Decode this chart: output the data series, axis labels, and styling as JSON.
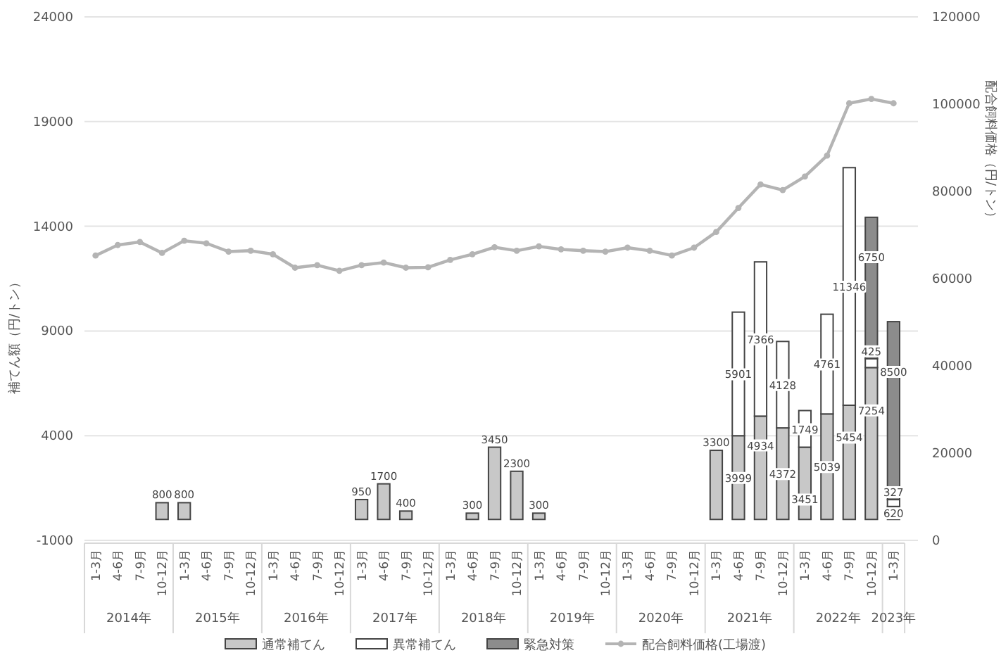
{
  "chart_data": {
    "type": "bar",
    "stacked": true,
    "categories": [
      "1-3月",
      "4-6月",
      "7-9月",
      "10-12月",
      "1-3月",
      "4-6月",
      "7-9月",
      "10-12月",
      "1-3月",
      "4-6月",
      "7-9月",
      "10-12月",
      "1-3月",
      "4-6月",
      "7-9月",
      "10-12月",
      "1-3月",
      "4-6月",
      "7-9月",
      "10-12月",
      "1-3月",
      "4-6月",
      "7-9月",
      "10-12月",
      "1-3月",
      "4-6月",
      "7-9月",
      "10-12月",
      "1-3月",
      "4-6月",
      "7-9月",
      "10-12月",
      "1-3月",
      "4-6月",
      "7-9月",
      "10-12月",
      "1-3月"
    ],
    "annotations": [
      "2014年",
      "2015年",
      "2016年",
      "2017年",
      "2018年",
      "2019年",
      "2020年",
      "2021年",
      "2022年",
      "2023年"
    ],
    "series": [
      {
        "name": "通常補てん",
        "color": "#c8c8c8",
        "values": [
          null,
          null,
          null,
          800,
          800,
          null,
          null,
          null,
          null,
          null,
          null,
          null,
          950,
          1700,
          400,
          null,
          null,
          300,
          3450,
          2300,
          300,
          null,
          null,
          null,
          null,
          null,
          null,
          null,
          3300,
          3999,
          4934,
          4372,
          3451,
          5039,
          5454,
          7254,
          620
        ],
        "value_labels": [
          null,
          null,
          null,
          "800",
          "800",
          null,
          null,
          null,
          null,
          null,
          null,
          null,
          "950",
          "1700",
          "400",
          null,
          null,
          "300",
          "3450",
          "2300",
          "300",
          null,
          null,
          null,
          null,
          null,
          null,
          null,
          "3300",
          "3999",
          "4934",
          "4372",
          "3451",
          "5039",
          "5454",
          "7254",
          "620"
        ]
      },
      {
        "name": "異常補てん",
        "color": "#ffffff",
        "values": [
          null,
          null,
          null,
          null,
          null,
          null,
          null,
          null,
          null,
          null,
          null,
          null,
          null,
          null,
          null,
          null,
          null,
          null,
          null,
          null,
          null,
          null,
          null,
          null,
          null,
          null,
          null,
          null,
          null,
          5901,
          7366,
          4128,
          1749,
          4761,
          11346,
          425,
          327
        ],
        "value_labels": [
          null,
          null,
          null,
          null,
          null,
          null,
          null,
          null,
          null,
          null,
          null,
          null,
          null,
          null,
          null,
          null,
          null,
          null,
          null,
          null,
          null,
          null,
          null,
          null,
          null,
          null,
          null,
          null,
          null,
          "5901",
          "7366",
          "4128",
          "1749",
          "4761",
          "11346",
          "425",
          "327"
        ]
      },
      {
        "name": "緊急対策",
        "color": "#8c8c8c",
        "values": [
          null,
          null,
          null,
          null,
          null,
          null,
          null,
          null,
          null,
          null,
          null,
          null,
          null,
          null,
          null,
          null,
          null,
          null,
          null,
          null,
          null,
          null,
          null,
          null,
          null,
          null,
          null,
          null,
          null,
          null,
          null,
          null,
          null,
          null,
          null,
          6750,
          8500
        ],
        "value_labels": [
          null,
          null,
          null,
          null,
          null,
          null,
          null,
          null,
          null,
          null,
          null,
          null,
          null,
          null,
          null,
          null,
          null,
          null,
          null,
          null,
          null,
          null,
          null,
          null,
          null,
          null,
          null,
          null,
          null,
          null,
          null,
          null,
          null,
          null,
          null,
          "6750",
          "8500"
        ]
      },
      {
        "name": "配合飼料価格(工場渡)",
        "type": "line",
        "axis": "y2",
        "marker": "circle",
        "color": "#b4b4b4",
        "values": [
          65300,
          67700,
          68400,
          65900,
          68700,
          68100,
          66200,
          66400,
          65600,
          62500,
          63100,
          61800,
          63100,
          63700,
          62500,
          62600,
          64300,
          65600,
          67200,
          66400,
          67400,
          66700,
          66400,
          66200,
          67100,
          66400,
          65300,
          67100,
          70700,
          76200,
          81600,
          80300,
          83400,
          88200,
          100200,
          101200,
          100200
        ]
      }
    ],
    "ylabel": "補てん額（円/トン）",
    "y2label": "配合飼料価格（円/トン）",
    "ylim": [
      -1000,
      24000
    ],
    "yticks": [
      -1000,
      4000,
      9000,
      14000,
      19000,
      24000
    ],
    "y2lim": [
      0,
      120000
    ],
    "y2ticks": [
      0,
      20000,
      40000,
      60000,
      80000,
      100000,
      120000
    ],
    "grid": "y",
    "legend": "bottom"
  }
}
